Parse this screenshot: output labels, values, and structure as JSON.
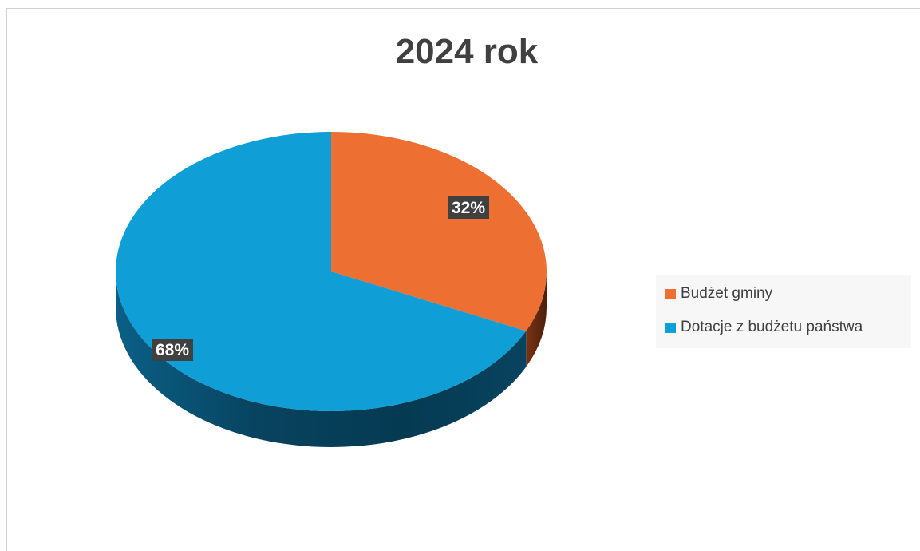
{
  "chart_data": {
    "type": "pie",
    "title": "2024 rok",
    "categories": [
      "Budżet gminy",
      "Dotacje z budżetu państwa"
    ],
    "values": [
      32,
      68
    ],
    "data_labels": [
      "32%",
      "68%"
    ],
    "colors": [
      "#ED7032",
      "#0F9ED5"
    ],
    "legend_position": "right",
    "style": "3d"
  }
}
